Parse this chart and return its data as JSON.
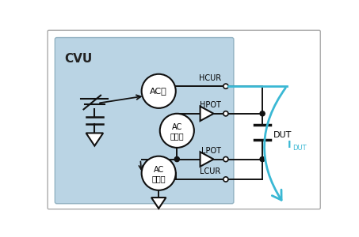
{
  "bg_color": "#ffffff",
  "cvu_bg_color": "#aecde0",
  "cvu_label": "CVU",
  "line_color": "#111111",
  "cyan_color": "#3ab8d4",
  "hcur_label": "HCUR",
  "hpot_label": "HPOT",
  "lpot_label": "LPOT",
  "lcur_label": "LCUR",
  "dut_label": "DUT",
  "ac_src_label": "AC源",
  "ac_volt_label1": "AC",
  "ac_volt_label2": "电压表",
  "ac_curr_label1": "AC",
  "ac_curr_label2": "电流表"
}
